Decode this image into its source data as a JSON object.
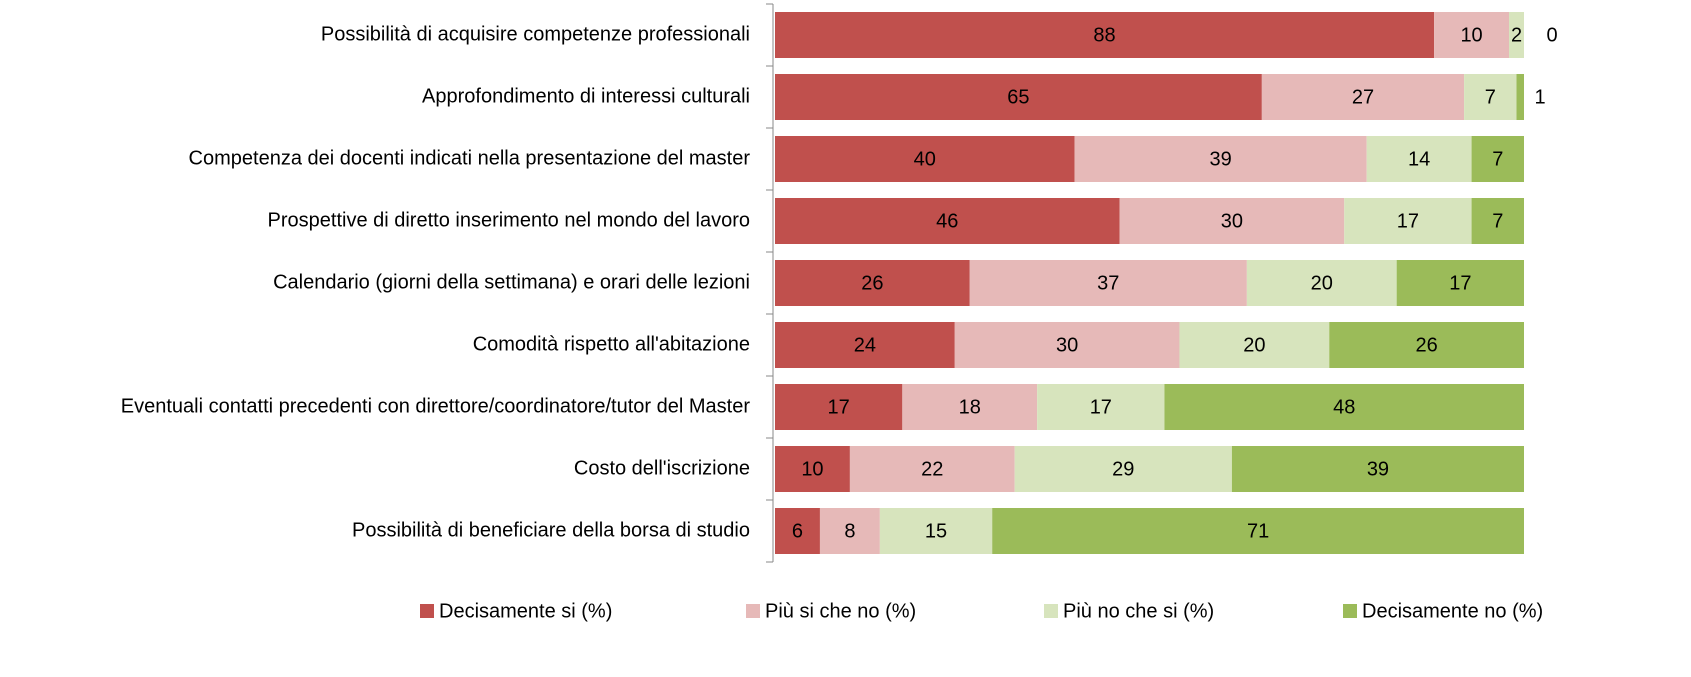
{
  "chart_data": {
    "type": "bar",
    "orientation": "horizontal",
    "stacked": true,
    "legend": "bottom",
    "categories": [
      "Possibilità di acquisire competenze professionali",
      "Approfondimento di interessi culturali",
      "Competenza dei docenti indicati nella presentazione del master",
      "Prospettive di diretto inserimento nel mondo del lavoro",
      "Calendario (giorni della settimana) e orari delle lezioni",
      "Comodità rispetto all'abitazione",
      "Eventuali contatti precedenti con direttore/coordinatore/tutor del Master",
      "Costo dell'iscrizione",
      "Possibilità di beneficiare della borsa di studio"
    ],
    "series": [
      {
        "name": "Decisamente si (%)",
        "color": "#c0504d",
        "label_color": "#ffffff",
        "values": [
          88,
          65,
          40,
          46,
          26,
          24,
          17,
          10,
          6
        ]
      },
      {
        "name": "Più si che no (%)",
        "color": "#e6b9b8",
        "label_color": "#ffffff",
        "values": [
          10,
          27,
          39,
          30,
          37,
          30,
          18,
          22,
          8
        ]
      },
      {
        "name": "Più no che si (%)",
        "color": "#d7e4bd",
        "label_color": "#000000",
        "values": [
          2,
          7,
          14,
          17,
          20,
          20,
          17,
          29,
          15
        ]
      },
      {
        "name": "Decisamente no (%)",
        "color": "#9bbb59",
        "label_color": "#ffffff",
        "values": [
          0,
          1,
          7,
          7,
          17,
          26,
          48,
          39,
          71
        ]
      }
    ]
  }
}
